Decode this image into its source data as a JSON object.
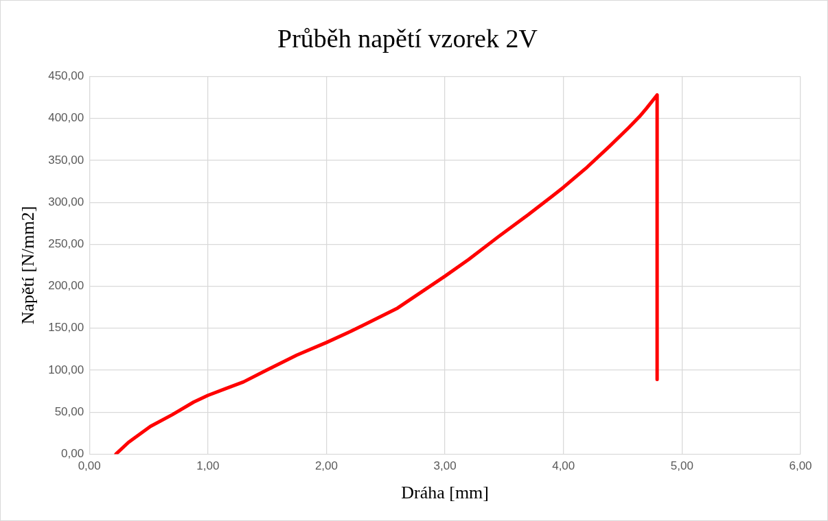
{
  "chart_data": {
    "type": "line",
    "title": "Průběh napětí vzorek 2V",
    "xlabel": "Dráha [mm]",
    "ylabel": "Napětí [N/mm2]",
    "x": [
      0.224,
      0.33,
      0.515,
      0.7,
      0.88,
      1.0,
      1.15,
      1.3,
      1.48,
      1.75,
      2.0,
      2.2,
      2.33,
      2.6,
      3.0,
      3.2,
      3.45,
      3.7,
      3.91,
      4.0,
      4.2,
      4.39,
      4.55,
      4.64,
      4.7,
      4.79,
      4.79
    ],
    "series": [
      {
        "color": "#ff0000",
        "values": [
          0,
          14,
          33,
          47,
          62,
          70,
          78,
          86,
          99,
          118,
          133,
          146,
          155,
          174,
          212,
          232,
          259,
          285,
          308,
          318,
          342,
          367,
          389,
          402,
          412,
          428,
          89
        ]
      }
    ],
    "xlim": [
      0,
      6
    ],
    "xticks": [
      {
        "value": 0,
        "label": "0,00"
      },
      {
        "value": 1,
        "label": "1,00"
      },
      {
        "value": 2,
        "label": "2,00"
      },
      {
        "value": 3,
        "label": "3,00"
      },
      {
        "value": 4,
        "label": "4,00"
      },
      {
        "value": 5,
        "label": "5,00"
      },
      {
        "value": 6,
        "label": "6,00"
      }
    ],
    "ylim": [
      0,
      450
    ],
    "yticks": [
      {
        "value": 0,
        "label": "0,00"
      },
      {
        "value": 50,
        "label": "50,00"
      },
      {
        "value": 100,
        "label": "100,00"
      },
      {
        "value": 150,
        "label": "150,00"
      },
      {
        "value": 200,
        "label": "200,00"
      },
      {
        "value": 250,
        "label": "250,00"
      },
      {
        "value": 300,
        "label": "300,00"
      },
      {
        "value": 350,
        "label": "350,00"
      },
      {
        "value": 400,
        "label": "400,00"
      },
      {
        "value": 450,
        "label": "450,00"
      }
    ],
    "grid": true,
    "legend": false,
    "marker": "none",
    "line_style": "solid"
  }
}
